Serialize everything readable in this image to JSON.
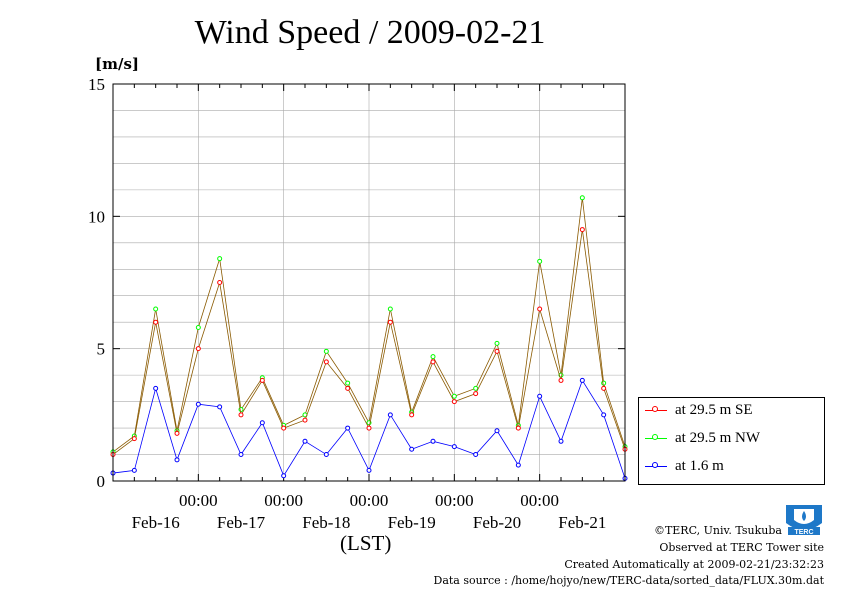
{
  "title": "Wind Speed / 2009-02-21",
  "y_unit": "[m/s]",
  "x_axis_title": "(LST)",
  "credits": [
    "©TERC, Univ. Tsukuba",
    "Observed at TERC Tower site",
    "Created Automatically at 2009-02-21/23:32:23",
    "Data source : /home/hojyo/new/TERC-data/sorted_data/FLUX.30m.dat"
  ],
  "logo_text": "TERC",
  "colors": {
    "se": "#ff0000",
    "nw": "#00ff00",
    "low": "#0000ff",
    "avg_line": "#8a5a00",
    "grid": "#aaaaaa"
  },
  "chart_data": {
    "type": "line",
    "title": "Wind Speed / 2009-02-21",
    "ylabel": "[m/s]",
    "xlabel": "(LST)",
    "ylim": [
      0,
      15
    ],
    "xlim": [
      0,
      6
    ],
    "yticks": [
      0,
      5,
      10,
      15
    ],
    "ytick_labels": [
      "0",
      "5",
      "10",
      "15"
    ],
    "xticks": [
      1,
      2,
      3,
      4,
      5
    ],
    "xtick_time_labels": [
      "00:00",
      "00:00",
      "00:00",
      "00:00",
      "00:00"
    ],
    "day_labels": [
      "Feb-16",
      "Feb-17",
      "Feb-18",
      "Feb-19",
      "Feb-20",
      "Feb-21"
    ],
    "grid": true,
    "legend_position": "right",
    "series": [
      {
        "name": "at 29.5 m SE",
        "color": "#ff0000",
        "x": [
          0,
          0.25,
          0.5,
          0.75,
          1,
          1.25,
          1.5,
          1.75,
          2,
          2.25,
          2.5,
          2.75,
          3,
          3.25,
          3.5,
          3.75,
          4,
          4.25,
          4.5,
          4.75,
          5,
          5.25,
          5.5,
          5.75,
          6
        ],
        "y": [
          1.0,
          1.6,
          6.0,
          1.8,
          5.0,
          7.5,
          2.5,
          3.8,
          2.0,
          2.3,
          4.5,
          3.5,
          2.0,
          6.0,
          2.5,
          4.5,
          3.0,
          3.3,
          4.9,
          2.0,
          6.5,
          3.8,
          9.5,
          3.5,
          1.2
        ]
      },
      {
        "name": "at 29.5 m NW",
        "color": "#00ff00",
        "x": [
          0,
          0.25,
          0.5,
          0.75,
          1,
          1.25,
          1.5,
          1.75,
          2,
          2.25,
          2.5,
          2.75,
          3,
          3.25,
          3.5,
          3.75,
          4,
          4.25,
          4.5,
          4.75,
          5,
          5.25,
          5.5,
          5.75,
          6
        ],
        "y": [
          1.1,
          1.7,
          6.5,
          1.9,
          5.8,
          8.4,
          2.7,
          3.9,
          2.1,
          2.5,
          4.9,
          3.7,
          2.2,
          6.5,
          2.6,
          4.7,
          3.2,
          3.5,
          5.2,
          2.1,
          8.3,
          4.0,
          10.7,
          3.7,
          1.3
        ]
      },
      {
        "name": "at 1.6 m",
        "color": "#0000ff",
        "x": [
          0,
          0.25,
          0.5,
          0.75,
          1,
          1.25,
          1.5,
          1.75,
          2,
          2.25,
          2.5,
          2.75,
          3,
          3.25,
          3.5,
          3.75,
          4,
          4.25,
          4.5,
          4.75,
          5,
          5.25,
          5.5,
          5.75,
          6
        ],
        "y": [
          0.3,
          0.4,
          3.5,
          0.8,
          2.9,
          2.8,
          1.0,
          2.2,
          0.2,
          1.5,
          1.0,
          2.0,
          0.4,
          2.5,
          1.2,
          1.5,
          1.3,
          1.0,
          1.9,
          0.6,
          3.2,
          1.5,
          3.8,
          2.5,
          0.1
        ]
      }
    ]
  }
}
